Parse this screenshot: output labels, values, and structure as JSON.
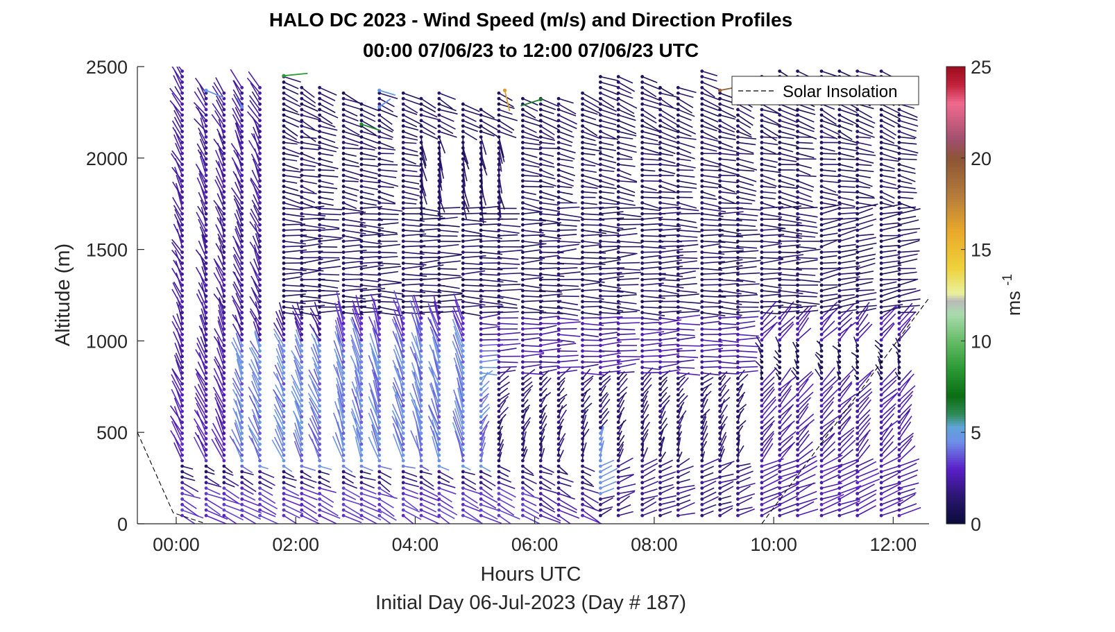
{
  "chart_data": {
    "type": "quiver",
    "title_line1": "HALO DC 2023 - Wind Speed (m/s) and Direction Profiles",
    "title_line2": "00:00 07/06/23 to 12:00 07/06/23  UTC",
    "xlabel": "Hours UTC",
    "ylabel": "Altitude (m)",
    "footer": "Initial Day 06-Jul-2023 (Day # 187)",
    "x_ticks": [
      "00:00",
      "02:00",
      "04:00",
      "06:00",
      "08:00",
      "10:00",
      "12:00"
    ],
    "x_tick_values": [
      0,
      2,
      4,
      6,
      8,
      10,
      12
    ],
    "xlim": [
      -0.65,
      12.6
    ],
    "y_ticks": [
      "0",
      "500",
      "1000",
      "1500",
      "2000",
      "2500"
    ],
    "y_tick_values": [
      0,
      500,
      1000,
      1500,
      2000,
      2500
    ],
    "ylim": [
      0,
      2500
    ],
    "colorbar": {
      "label": "ms-1",
      "label_base": "ms",
      "label_exp": "-1",
      "ticks": [
        "0",
        "5",
        "10",
        "15",
        "20",
        "25"
      ],
      "tick_values": [
        0,
        5,
        10,
        15,
        20,
        25
      ],
      "range": [
        0,
        25
      ],
      "colormap": [
        {
          "v": 0,
          "c": "#0b0b3a"
        },
        {
          "v": 1.5,
          "c": "#2a1670"
        },
        {
          "v": 3,
          "c": "#5a1fc8"
        },
        {
          "v": 4.5,
          "c": "#6f8fe8"
        },
        {
          "v": 5.3,
          "c": "#5fa4d8"
        },
        {
          "v": 6,
          "c": "#2e8b57"
        },
        {
          "v": 7,
          "c": "#0b6e14"
        },
        {
          "v": 8.5,
          "c": "#2a9a35"
        },
        {
          "v": 10,
          "c": "#66bb66"
        },
        {
          "v": 11.5,
          "c": "#aadcae"
        },
        {
          "v": 12.2,
          "c": "#b9b9b9"
        },
        {
          "v": 12.6,
          "c": "#e9f19f"
        },
        {
          "v": 14,
          "c": "#eed23a"
        },
        {
          "v": 16,
          "c": "#e9a92a"
        },
        {
          "v": 18,
          "c": "#b47b3c"
        },
        {
          "v": 20,
          "c": "#8c5535"
        },
        {
          "v": 21,
          "c": "#a04f6e"
        },
        {
          "v": 23,
          "c": "#f06a8f"
        },
        {
          "v": 24,
          "c": "#c3223b"
        },
        {
          "v": 25,
          "c": "#9b0d1e"
        }
      ]
    },
    "legend": {
      "label": "Solar Insolation",
      "position": "top-right",
      "line_style": "dashed"
    },
    "solar_insolation": {
      "left_segment": [
        [
          -0.65,
          500
        ],
        [
          -0.05,
          60
        ],
        [
          0.5,
          0
        ]
      ],
      "baseline": [
        [
          0.5,
          0
        ],
        [
          9.8,
          0
        ]
      ],
      "right_segment": [
        [
          9.8,
          0
        ],
        [
          12.6,
          1235
        ]
      ]
    },
    "profile_times_hours": [
      0.1,
      0.5,
      0.8,
      1.1,
      1.4,
      1.8,
      2.1,
      2.4,
      2.8,
      3.1,
      3.4,
      3.8,
      4.1,
      4.4,
      4.8,
      5.1,
      5.4,
      5.8,
      6.1,
      6.4,
      6.8,
      7.1,
      7.4,
      7.8,
      8.1,
      8.4,
      8.8,
      9.1,
      9.4,
      9.8,
      10.1,
      10.4,
      10.8,
      11.1,
      11.4,
      11.8,
      12.1
    ],
    "profile_top_altitudes_m": [
      2490,
      2370,
      2370,
      2410,
      2410,
      2450,
      2400,
      2410,
      2380,
      2300,
      2370,
      2360,
      2340,
      2370,
      2320,
      2280,
      2370,
      2330,
      2340,
      2350,
      2360,
      2470,
      2470,
      2470,
      2410,
      2400,
      2490,
      2380,
      2400,
      2450,
      2490,
      2490,
      2490,
      2490,
      2490,
      2490,
      2300
    ],
    "altitude_gate_spacing_m": 30,
    "wind_field_description_regimes": [
      {
        "alt_m": [
          0,
          300
        ],
        "time_h": [
          0,
          6
        ],
        "speed_ms": 3,
        "dir": "toward lower-right, long"
      },
      {
        "alt_m": [
          300,
          1100
        ],
        "time_h": [
          0,
          5
        ],
        "speed_ms": 4,
        "dir": "toward upper-left"
      },
      {
        "alt_m": [
          1200,
          1700
        ],
        "time_h": [
          2,
          10
        ],
        "speed_ms": 1.5,
        "dir": "toward right (westerly flow), long"
      },
      {
        "alt_m": [
          0,
          1000
        ],
        "time_h": [
          9.5,
          12
        ],
        "speed_ms": 2.5,
        "dir": "toward upper-right"
      },
      {
        "alt_m": [
          2150,
          2500
        ],
        "time_h": [
          3,
          6
        ],
        "speed_ms": 8,
        "dir": "variable, with green/orange outliers"
      }
    ],
    "grid": false
  }
}
